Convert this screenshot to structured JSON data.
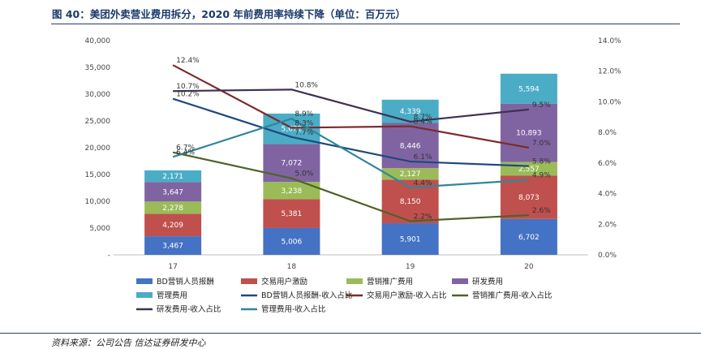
{
  "title": "图 40：美团外卖营业费用拆分，2020 年前费用率持续下降（单位：百万元）",
  "source": "资料来源：公司公告 信达证券研发中心",
  "chart_data": {
    "type": "bar",
    "stacked": true,
    "categories": [
      "17",
      "18",
      "19",
      "20"
    ],
    "y_left": {
      "ylim": [
        0,
        40000
      ],
      "ticks": [
        "-",
        "5,000",
        "10,000",
        "15,000",
        "20,000",
        "25,000",
        "30,000",
        "35,000",
        "40,000"
      ]
    },
    "y_right": {
      "ylim": [
        0,
        14
      ],
      "ticks": [
        "0.0%",
        "2.0%",
        "4.0%",
        "6.0%",
        "8.0%",
        "10.0%",
        "12.0%",
        "14.0%"
      ]
    },
    "bar_series": [
      {
        "name": "BD营销人员报酬",
        "color": "#4472c4",
        "values": [
          3467,
          5006,
          5901,
          6702
        ],
        "labels": [
          "3,467",
          "5,006",
          "5,901",
          "6,702"
        ],
        "label_color": "#ffffff"
      },
      {
        "name": "交易用户激励",
        "color": "#c0504d",
        "values": [
          4209,
          5381,
          8150,
          8073
        ],
        "labels": [
          "4,209",
          "5,381",
          "8,150",
          "8,073"
        ],
        "label_color": "#ffffff"
      },
      {
        "name": "营销推广费用",
        "color": "#9bbb59",
        "values": [
          2278,
          3238,
          2127,
          2557
        ],
        "labels": [
          "2,278",
          "3,238",
          "2,127",
          "2,557"
        ],
        "label_color": "#ffffff"
      },
      {
        "name": "研发费用",
        "color": "#8064a2",
        "values": [
          3647,
          7072,
          8446,
          10893
        ],
        "labels": [
          "3,647",
          "7,072",
          "8,446",
          "10,893"
        ],
        "label_color": "#ffffff"
      },
      {
        "name": "管理费用",
        "color": "#4bacc6",
        "values": [
          2171,
          5672,
          4339,
          5594
        ],
        "labels": [
          "2,171",
          "5,672",
          "4,339",
          "5,594"
        ],
        "label_color": "#ffffff"
      }
    ],
    "line_series": [
      {
        "name": "BD营销人员报酬-收入占比",
        "color": "#1f497d",
        "values": [
          10.2,
          7.7,
          6.1,
          5.8
        ],
        "labels": [
          "10.2%",
          "7.7%",
          "6.1%",
          "5.8%"
        ]
      },
      {
        "name": "交易用户激励-收入占比",
        "color": "#7b2c2a",
        "values": [
          12.4,
          8.3,
          8.4,
          7.0
        ],
        "labels": [
          "12.4%",
          "8.3%",
          "8.4%",
          "7.0%"
        ]
      },
      {
        "name": "营销推广费用-收入占比",
        "color": "#4f6228",
        "values": [
          6.7,
          5.0,
          2.2,
          2.6
        ],
        "labels": [
          "6.7%",
          "5.0%",
          "2.2%",
          "2.6%"
        ]
      },
      {
        "name": "研发费用-收入占比",
        "color": "#403152",
        "values": [
          10.7,
          10.8,
          8.7,
          9.5
        ],
        "labels": [
          "10.7%",
          "10.8%",
          "8.7%",
          "9.5%"
        ]
      },
      {
        "name": "管理费用-收入占比",
        "color": "#31859c",
        "values": [
          6.4,
          8.9,
          4.4,
          4.9
        ],
        "labels": [
          "6.4%",
          "8.9%",
          "4.4%",
          "4.9%"
        ]
      }
    ],
    "legend": [
      {
        "name": "BD营销人员报酬",
        "kind": "rect",
        "color": "#4472c4"
      },
      {
        "name": "交易用户激励",
        "kind": "rect",
        "color": "#c0504d"
      },
      {
        "name": "营销推广费用",
        "kind": "rect",
        "color": "#9bbb59"
      },
      {
        "name": "研发费用",
        "kind": "rect",
        "color": "#8064a2"
      },
      {
        "name": "管理费用",
        "kind": "rect",
        "color": "#4bacc6"
      },
      {
        "name": "BD营销人员报酬-收入占比",
        "kind": "line",
        "color": "#1f497d"
      },
      {
        "name": "交易用户激励-收入占比",
        "kind": "line",
        "color": "#7b2c2a"
      },
      {
        "name": "营销推广费用-收入占比",
        "kind": "line",
        "color": "#4f6228"
      },
      {
        "name": "研发费用-收入占比",
        "kind": "line",
        "color": "#403152"
      },
      {
        "name": "管理费用-收入占比",
        "kind": "line",
        "color": "#31859c"
      }
    ],
    "legend_position": "bottom",
    "grid": false
  }
}
